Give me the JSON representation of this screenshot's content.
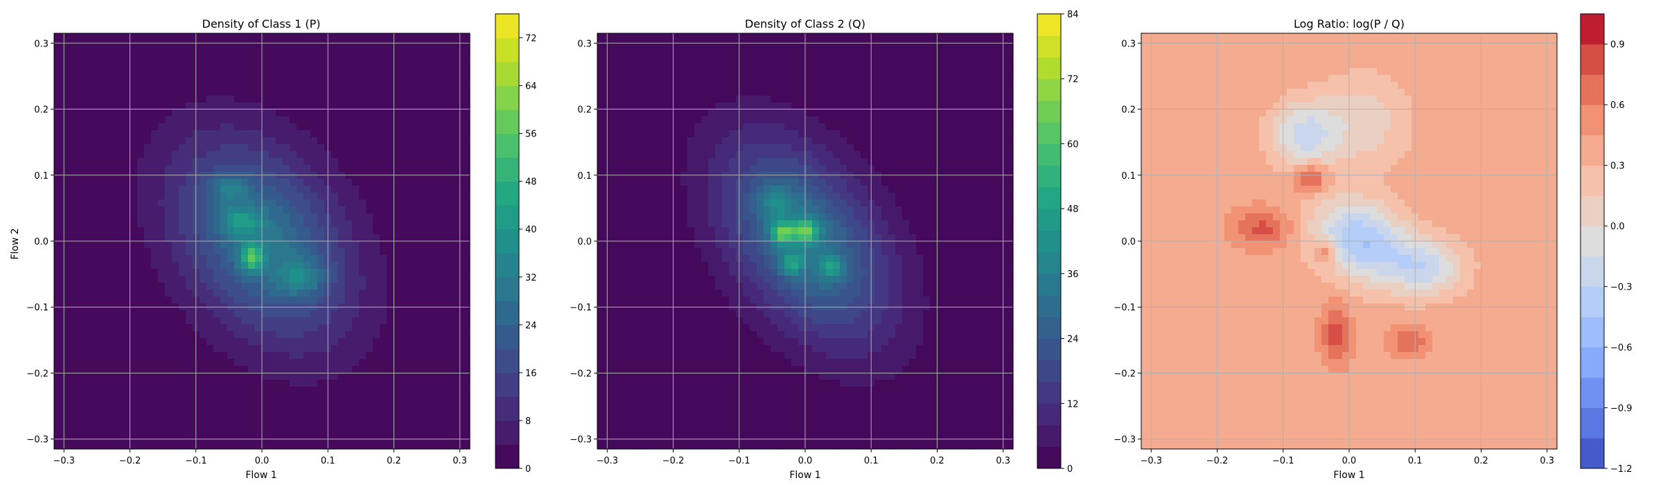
{
  "chart_data": [
    {
      "type": "heatmap",
      "title": "Density of Class 1 (P)",
      "xlabel": "Flow 1",
      "ylabel": "Flow 2",
      "xlim": [
        -0.315,
        0.315
      ],
      "ylim": [
        -0.315,
        0.315
      ],
      "xticks": [
        -0.3,
        -0.2,
        -0.1,
        0.0,
        0.1,
        0.2,
        0.3
      ],
      "yticks": [
        -0.3,
        -0.2,
        -0.1,
        0.0,
        0.1,
        0.2,
        0.3
      ],
      "grid": true,
      "colormap": "viridis",
      "colorbar": {
        "min": 0,
        "max": 76,
        "step": 4,
        "ticks": [
          0,
          8,
          16,
          24,
          32,
          40,
          48,
          56,
          64,
          72
        ]
      },
      "blobs": [
        {
          "x": -0.015,
          "y": -0.025,
          "sx": 0.012,
          "sy": 0.014,
          "amp": 30
        },
        {
          "x": -0.03,
          "y": 0.03,
          "sx": 0.02,
          "sy": 0.015,
          "amp": 16
        },
        {
          "x": -0.05,
          "y": 0.08,
          "sx": 0.02,
          "sy": 0.015,
          "amp": 12
        },
        {
          "x": 0.06,
          "y": -0.055,
          "sx": 0.025,
          "sy": 0.02,
          "amp": 14
        },
        {
          "x": 0.0,
          "y": 0.0,
          "sx": 0.075,
          "sy": 0.11,
          "amp": 22,
          "rot": -0.6
        },
        {
          "x": 0.0,
          "y": 0.0,
          "sx": 0.095,
          "sy": 0.14,
          "amp": 8,
          "rot": -0.6
        }
      ]
    },
    {
      "type": "heatmap",
      "title": "Density of Class 2 (Q)",
      "xlabel": "Flow 1",
      "ylabel": "",
      "xlim": [
        -0.315,
        0.315
      ],
      "ylim": [
        -0.315,
        0.315
      ],
      "xticks": [
        -0.3,
        -0.2,
        -0.1,
        0.0,
        0.1,
        0.2,
        0.3
      ],
      "yticks": [
        -0.3,
        -0.2,
        -0.1,
        0.0,
        0.1,
        0.2,
        0.3
      ],
      "grid": true,
      "colormap": "viridis",
      "colorbar": {
        "min": 0,
        "max": 84,
        "step": 4,
        "ticks": [
          0,
          12,
          24,
          36,
          48,
          60,
          72,
          84
        ]
      },
      "blobs": [
        {
          "x": -0.035,
          "y": 0.012,
          "sx": 0.012,
          "sy": 0.012,
          "amp": 35
        },
        {
          "x": 0.0,
          "y": 0.015,
          "sx": 0.014,
          "sy": 0.012,
          "amp": 33
        },
        {
          "x": -0.02,
          "y": -0.035,
          "sx": 0.012,
          "sy": 0.012,
          "amp": 22
        },
        {
          "x": 0.04,
          "y": -0.04,
          "sx": 0.012,
          "sy": 0.012,
          "amp": 22
        },
        {
          "x": -0.045,
          "y": 0.06,
          "sx": 0.02,
          "sy": 0.018,
          "amp": 14
        },
        {
          "x": 0.0,
          "y": 0.0,
          "sx": 0.065,
          "sy": 0.11,
          "amp": 26,
          "rot": -0.6
        },
        {
          "x": 0.0,
          "y": 0.0,
          "sx": 0.09,
          "sy": 0.14,
          "amp": 8,
          "rot": -0.6
        }
      ]
    },
    {
      "type": "heatmap",
      "title": "Log Ratio: log(P / Q)",
      "xlabel": "Flow 1",
      "ylabel": "",
      "xlim": [
        -0.315,
        0.315
      ],
      "ylim": [
        -0.315,
        0.315
      ],
      "xticks": [
        -0.3,
        -0.2,
        -0.1,
        0.0,
        0.1,
        0.2,
        0.3
      ],
      "yticks": [
        -0.3,
        -0.2,
        -0.1,
        0.0,
        0.1,
        0.2,
        0.3
      ],
      "grid": true,
      "colormap": "coolwarm",
      "colorbar": {
        "min": -1.2,
        "max": 1.05,
        "step": 0.15,
        "ticks": [
          -1.2,
          -0.9,
          -0.6,
          -0.3,
          0.0,
          0.3,
          0.6,
          0.9
        ]
      },
      "background_value": 0.4,
      "blobs": [
        {
          "x": 0.02,
          "y": 0.0,
          "sx": 0.055,
          "sy": 0.04,
          "amp": -0.85,
          "rot": 0.5
        },
        {
          "x": -0.07,
          "y": 0.16,
          "sx": 0.035,
          "sy": 0.035,
          "amp": -0.6
        },
        {
          "x": 0.12,
          "y": -0.04,
          "sx": 0.04,
          "sy": 0.03,
          "amp": -0.55
        },
        {
          "x": 0.02,
          "y": 0.18,
          "sx": 0.05,
          "sy": 0.05,
          "amp": -0.35
        },
        {
          "x": -0.06,
          "y": 0.095,
          "sx": 0.018,
          "sy": 0.015,
          "amp": 0.55
        },
        {
          "x": -0.13,
          "y": 0.02,
          "sx": 0.03,
          "sy": 0.02,
          "amp": 0.4
        },
        {
          "x": -0.035,
          "y": -0.015,
          "sx": 0.012,
          "sy": 0.012,
          "amp": 0.45
        },
        {
          "x": -0.02,
          "y": -0.14,
          "sx": 0.015,
          "sy": 0.03,
          "amp": 0.45
        },
        {
          "x": 0.09,
          "y": -0.15,
          "sx": 0.02,
          "sy": 0.015,
          "amp": 0.35
        }
      ]
    }
  ]
}
